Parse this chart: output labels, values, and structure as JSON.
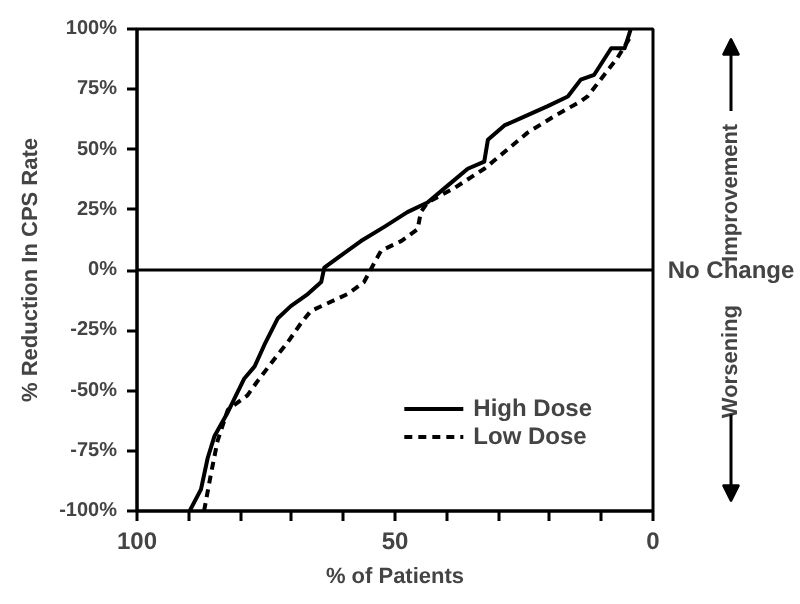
{
  "chart_data": {
    "type": "line",
    "xlabel": "% of Patients",
    "ylabel": "% Reduction In CPS Rate",
    "xlim": [
      100,
      0
    ],
    "ylim": [
      -100,
      100
    ],
    "xticks": [
      100,
      {
        "value": 90,
        "label": null
      },
      {
        "value": 80,
        "label": null
      },
      {
        "value": 70,
        "label": null
      },
      {
        "value": 60,
        "label": null
      },
      50,
      {
        "value": 40,
        "label": null
      },
      {
        "value": 30,
        "label": null
      },
      {
        "value": 20,
        "label": null
      },
      {
        "value": 10,
        "label": null
      },
      0
    ],
    "yticks": [
      {
        "value": -100,
        "label": "-100%"
      },
      {
        "value": -75,
        "label": "-75%"
      },
      {
        "value": -50,
        "label": "-50%"
      },
      {
        "value": -25,
        "label": "-25%"
      },
      {
        "value": 0,
        "label": "0%"
      },
      {
        "value": 25,
        "label": "25%"
      },
      {
        "value": 50,
        "label": "50%"
      },
      {
        "value": 75,
        "label": "75%"
      },
      {
        "value": 100,
        "label": "100%"
      }
    ],
    "series": [
      {
        "name": "High Dose",
        "color": "#000000",
        "line_style": "solid",
        "x": [
          89.8,
          87.6,
          86.3,
          85,
          82.4,
          79.2,
          77.2,
          75.3,
          72.7,
          70.2,
          66.9,
          64.3,
          63.7,
          60.5,
          56.6,
          52,
          47.6,
          43.7,
          39.8,
          35.9,
          32.7,
          32,
          28.8,
          25.6,
          20.4,
          16.5,
          14,
          11.4,
          8.1,
          5.5,
          4.3
        ],
        "values": [
          -100,
          -91,
          -78,
          -69,
          -59,
          -45,
          -40,
          -31,
          -20,
          -15,
          -10,
          -5,
          1,
          6,
          12,
          18,
          24,
          28,
          35,
          42,
          45,
          54,
          60,
          63,
          68,
          72,
          79,
          81,
          92,
          92,
          100
        ]
      },
      {
        "name": "Low Dose",
        "color": "#000000",
        "line_style": "dashed",
        "x": [
          87,
          85.7,
          84.4,
          82.4,
          78.6,
          76.6,
          73.4,
          70.8,
          68.2,
          66.3,
          59.2,
          56,
          54,
          52.7,
          48.8,
          45.6,
          45,
          43.7,
          38.5,
          32.7,
          28.2,
          24.3,
          19,
          14,
          12.7,
          6.9,
          4.3
        ],
        "values": [
          -100,
          -85,
          -71,
          -58,
          -52,
          -46,
          -37,
          -30,
          -22,
          -17,
          -10,
          -5,
          3,
          8,
          12,
          17,
          24,
          28,
          34,
          42,
          50,
          57,
          64,
          70,
          72,
          88,
          97
        ]
      }
    ],
    "ref_lines": [
      {
        "axis": "y",
        "value": 0,
        "label": "No Change",
        "color": "#000000"
      }
    ],
    "annotations": [
      "Improvement",
      "Worsening"
    ],
    "grid": false,
    "legend": "bottom right",
    "marker": "none"
  }
}
